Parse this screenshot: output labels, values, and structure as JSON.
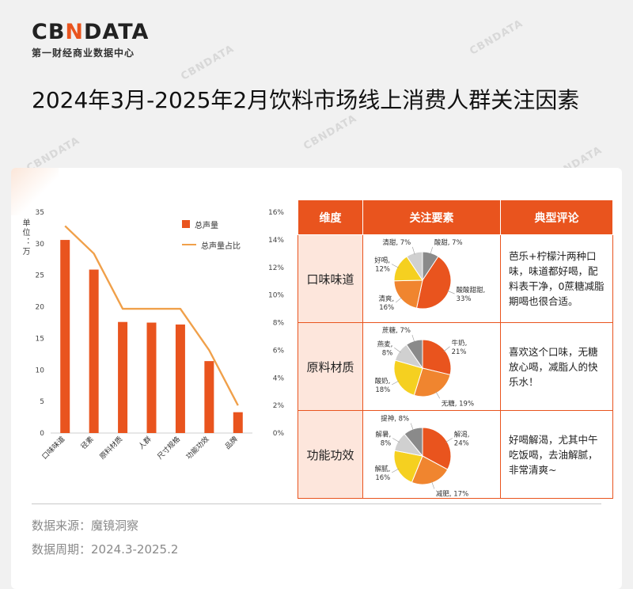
{
  "logo": {
    "brand_a": "CB",
    "brand_b": "N",
    "brand_c": "DATA",
    "subtitle": "第一财经商业数据中心"
  },
  "title": "2024年3月-2025年2月饮料市场线上消费人群关注因素",
  "chart_data": {
    "type": "bar",
    "ylabel": "单位：万",
    "categories": [
      "口味味道",
      "径素",
      "原料材质",
      "人群",
      "尺寸规格",
      "功能功效",
      "品牌"
    ],
    "y_ticks": [
      "0",
      "5",
      "10",
      "15",
      "20",
      "25",
      "30",
      "35"
    ],
    "y2_ticks": [
      "0%",
      "2%",
      "4%",
      "6%",
      "8%",
      "10%",
      "12%",
      "14%",
      "16%"
    ],
    "ylim": [
      0,
      35
    ],
    "y2lim": [
      0,
      16
    ],
    "series": [
      {
        "name": "总声量",
        "type": "bar",
        "values": [
          30.6,
          25.9,
          17.6,
          17.5,
          17.2,
          11.4,
          3.3
        ]
      },
      {
        "name": "总声量占比",
        "type": "line",
        "values": [
          15.0,
          13.0,
          9.0,
          9.0,
          9.0,
          6.0,
          2.0
        ]
      }
    ],
    "colors": {
      "bar": "#e9541e",
      "line": "#f0a04a"
    },
    "legend": "top-right"
  },
  "table": {
    "headers": [
      "维度",
      "关注要素",
      "典型评论"
    ],
    "rows": [
      {
        "dimension": "口味味道",
        "comment": "芭乐+柠檬汁两种口味，味道都好喝，配料表干净，0蔗糖减脂期喝也很合适。",
        "slices": [
          {
            "label": "酸甜,",
            "pct": "7%",
            "value": 7,
            "color": "#8a8a8a"
          },
          {
            "label": "酸酸甜甜,",
            "pct": "33%",
            "value": 33,
            "color": "#e9541e"
          },
          {
            "label": "清爽,",
            "pct": "16%",
            "value": 16,
            "color": "#f0852f"
          },
          {
            "label": "好喝,",
            "pct": "12%",
            "value": 12,
            "color": "#f5d020"
          },
          {
            "label": "清甜,",
            "pct": "7%",
            "value": 7,
            "color": "#d0d0d0"
          }
        ]
      },
      {
        "dimension": "原料材质",
        "comment": "喜欢这个口味，无糖放心喝，减脂人的快乐水！",
        "slices": [
          {
            "label": "牛奶,",
            "pct": "21%",
            "value": 21,
            "color": "#e9541e"
          },
          {
            "label": "无糖,",
            "pct": "19%",
            "value": 19,
            "color": "#f0852f"
          },
          {
            "label": "酸奶,",
            "pct": "18%",
            "value": 18,
            "color": "#f5d020"
          },
          {
            "label": "燕麦,",
            "pct": "8%",
            "value": 8,
            "color": "#d0d0d0"
          },
          {
            "label": "蔗糖,",
            "pct": "7%",
            "value": 7,
            "color": "#8a8a8a"
          }
        ]
      },
      {
        "dimension": "功能功效",
        "comment": "好喝解渴，尤其中午吃饭喝，去油解腻，非常清爽~",
        "slices": [
          {
            "label": "解渴,",
            "pct": "24%",
            "value": 24,
            "color": "#e9541e"
          },
          {
            "label": "减肥,",
            "pct": "17%",
            "value": 17,
            "color": "#f0852f"
          },
          {
            "label": "解腻,",
            "pct": "16%",
            "value": 16,
            "color": "#f5d020"
          },
          {
            "label": "解暑,",
            "pct": "8%",
            "value": 8,
            "color": "#d0d0d0"
          },
          {
            "label": "提神,",
            "pct": "8%",
            "value": 8,
            "color": "#8a8a8a"
          }
        ]
      }
    ]
  },
  "footer": {
    "source": "数据来源：魔镜洞察",
    "period": "数据周期：2024.3-2025.2"
  },
  "watermark": "CBNDATA"
}
